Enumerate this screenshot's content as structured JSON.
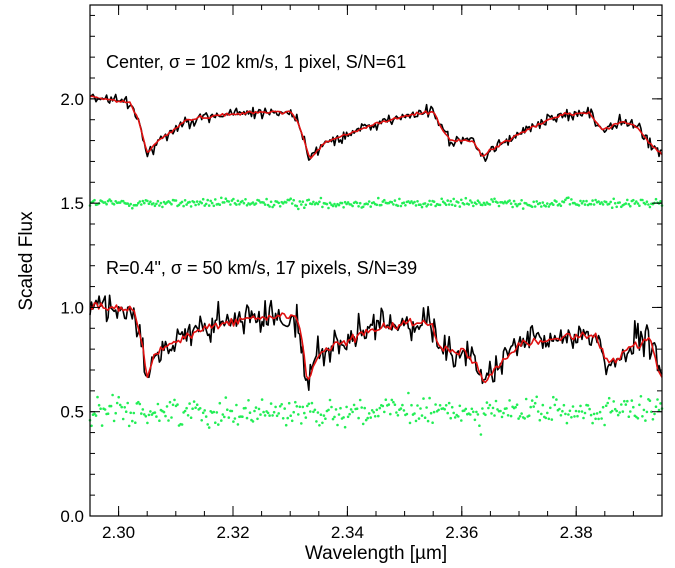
{
  "chart_data": {
    "type": "line",
    "xlabel": "Wavelength [µm]",
    "ylabel": "Scaled Flux",
    "xlim": [
      2.295,
      2.395
    ],
    "ylim": [
      0.0,
      2.45
    ],
    "x_ticks": [
      2.3,
      2.32,
      2.34,
      2.36,
      2.38
    ],
    "x_tick_labels": [
      "2.30",
      "2.32",
      "2.34",
      "2.36",
      "2.38"
    ],
    "y_ticks": [
      0.0,
      0.5,
      1.0,
      1.5,
      2.0
    ],
    "y_tick_labels": [
      "0.0",
      "0.5",
      "1.0",
      "1.5",
      "2.0"
    ],
    "annotations": [
      "Center, σ = 102 km/s, 1 pixel, S/N=61",
      "R=0.4\", σ = 50 km/s, 17 pixels, S/N=39"
    ],
    "colors": {
      "data": "#000000",
      "model": "#e01010",
      "residuals": "#22ee55"
    },
    "panels": [
      {
        "annotation_index": 0,
        "model_x": [
          2.295,
          2.302,
          2.3035,
          2.305,
          2.307,
          2.312,
          2.32,
          2.33,
          2.3315,
          2.3335,
          2.336,
          2.345,
          2.352,
          2.355,
          2.3565,
          2.358,
          2.362,
          2.3635,
          2.366,
          2.372,
          2.378,
          2.3825,
          2.3845,
          2.388,
          2.3905,
          2.3925,
          2.395
        ],
        "model_y": [
          2.01,
          1.98,
          1.9,
          1.74,
          1.8,
          1.9,
          1.93,
          1.94,
          1.88,
          1.71,
          1.79,
          1.88,
          1.93,
          1.94,
          1.86,
          1.8,
          1.8,
          1.72,
          1.77,
          1.86,
          1.93,
          1.93,
          1.85,
          1.89,
          1.87,
          1.8,
          1.73
        ],
        "noise": 0.025,
        "residual_level": 1.5,
        "residual_scatter": 0.018
      },
      {
        "annotation_index": 1,
        "model_x": [
          2.295,
          2.3025,
          2.304,
          2.305,
          2.306,
          2.309,
          2.316,
          2.324,
          2.331,
          2.332,
          2.333,
          2.3345,
          2.338,
          2.346,
          2.352,
          2.355,
          2.356,
          2.3575,
          2.361,
          2.3628,
          2.364,
          2.3655,
          2.37,
          2.375,
          2.38,
          2.3835,
          2.385,
          2.387,
          2.39,
          2.393,
          2.3945,
          2.395
        ],
        "model_y": [
          1.01,
          0.99,
          0.86,
          0.65,
          0.77,
          0.82,
          0.91,
          0.95,
          0.96,
          0.86,
          0.64,
          0.76,
          0.82,
          0.91,
          0.93,
          0.92,
          0.82,
          0.8,
          0.78,
          0.72,
          0.63,
          0.7,
          0.82,
          0.84,
          0.87,
          0.86,
          0.75,
          0.74,
          0.82,
          0.84,
          0.68,
          0.66
        ],
        "noise": 0.065,
        "residual_level": 0.5,
        "residual_scatter": 0.055
      }
    ]
  }
}
